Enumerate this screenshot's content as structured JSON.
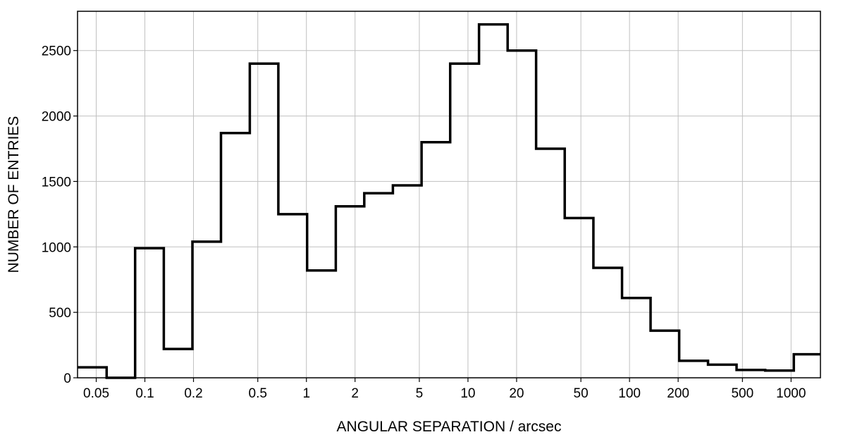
{
  "chart_data": {
    "type": "bar",
    "subtype": "histogram-step",
    "title": "",
    "xlabel": "ANGULAR SEPARATION / arcsec",
    "ylabel": "NUMBER OF ENTRIES",
    "x_scale": "log",
    "xlim": [
      0.0383,
      1520
    ],
    "ylim": [
      0,
      2800
    ],
    "grid": true,
    "x_ticks": [
      {
        "value": 0.05,
        "label": "0.05"
      },
      {
        "value": 0.1,
        "label": "0.1"
      },
      {
        "value": 0.2,
        "label": "0.2"
      },
      {
        "value": 0.5,
        "label": "0.5"
      },
      {
        "value": 1,
        "label": "1"
      },
      {
        "value": 2,
        "label": "2"
      },
      {
        "value": 5,
        "label": "5"
      },
      {
        "value": 10,
        "label": "10"
      },
      {
        "value": 20,
        "label": "20"
      },
      {
        "value": 50,
        "label": "50"
      },
      {
        "value": 100,
        "label": "100"
      },
      {
        "value": 200,
        "label": "200"
      },
      {
        "value": 500,
        "label": "500"
      },
      {
        "value": 1000,
        "label": "1000"
      }
    ],
    "y_ticks": [
      {
        "value": 0,
        "label": "0"
      },
      {
        "value": 500,
        "label": "500"
      },
      {
        "value": 1000,
        "label": "1000"
      },
      {
        "value": 1500,
        "label": "1500"
      },
      {
        "value": 2000,
        "label": "2000"
      },
      {
        "value": 2500,
        "label": "2500"
      }
    ],
    "bin_edges": [
      0.0383,
      0.058,
      0.087,
      0.131,
      0.197,
      0.296,
      0.446,
      0.67,
      1.01,
      1.52,
      2.28,
      3.43,
      5.16,
      7.76,
      11.7,
      17.6,
      26.4,
      39.7,
      59.8,
      89.9,
      135,
      203,
      306,
      460,
      692,
      1040,
      1520
    ],
    "values": [
      80,
      0,
      990,
      220,
      1040,
      1870,
      2400,
      1250,
      820,
      1310,
      1410,
      1470,
      1800,
      2400,
      2700,
      2500,
      1750,
      1220,
      840,
      610,
      360,
      130,
      100,
      60,
      55,
      180
    ]
  }
}
